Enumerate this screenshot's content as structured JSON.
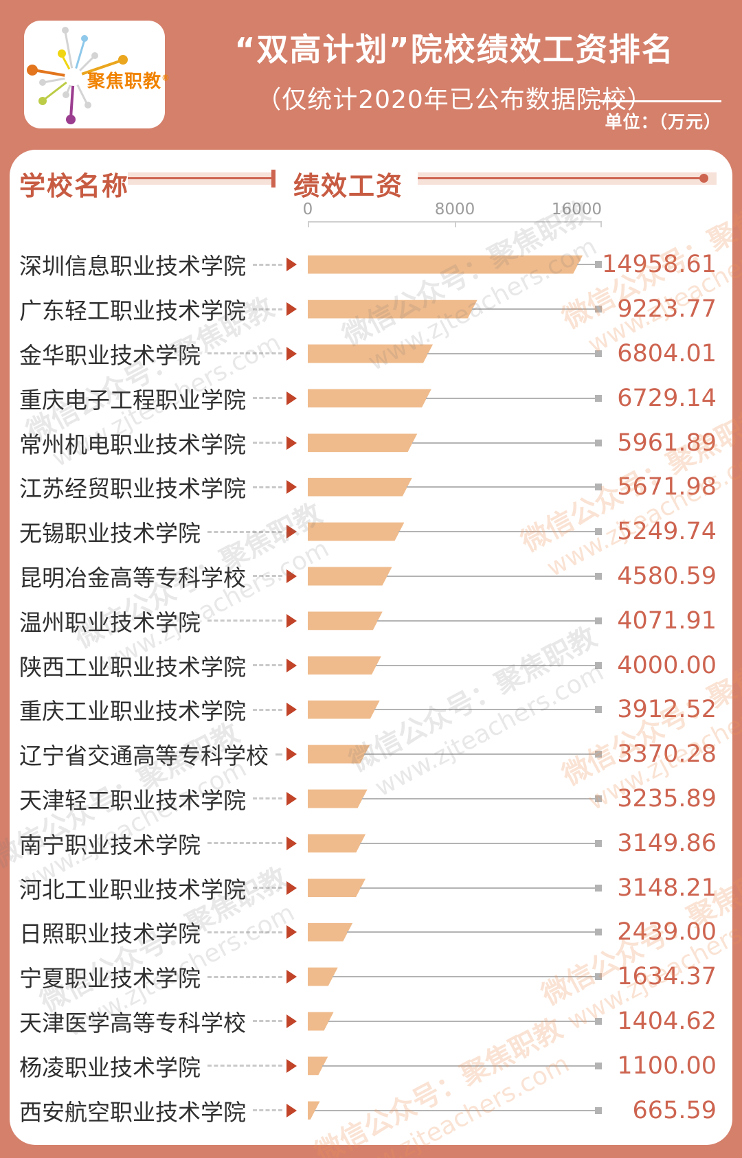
{
  "header": {
    "logo_text": "聚焦职教",
    "logo_reg_mark": "®",
    "title": "“双高计划”院校绩效工资排名",
    "subtitle": "（仅统计2020年已公布数据院校）",
    "unit_label": "单位：（万元）"
  },
  "columns": {
    "school": "学校名称",
    "salary": "绩效工资"
  },
  "chart_data": {
    "type": "bar",
    "orientation": "horizontal",
    "title": "“双高计划”院校绩效工资排名",
    "subtitle": "（仅统计2020年已公布数据院校）",
    "unit": "万元",
    "xlabel": "绩效工资",
    "ylabel": "学校名称",
    "xlim": [
      0,
      16000
    ],
    "x_ticks": [
      0,
      8000,
      16000
    ],
    "grid": false,
    "legend": false,
    "categories": [
      "深圳信息职业技术学院",
      "广东轻工职业技术学院",
      "金华职业技术学院",
      "重庆电子工程职业学院",
      "常州机电职业技术学院",
      "江苏经贸职业技术学院",
      "无锡职业技术学院",
      "昆明冶金高等专科学校",
      "温州职业技术学院",
      "陕西工业职业技术学院",
      "重庆工业职业技术学院",
      "辽宁省交通高等专科学校",
      "天津轻工职业技术学院",
      "南宁职业技术学院",
      "河北工业职业技术学院",
      "日照职业技术学院",
      "宁夏职业技术学院",
      "天津医学高等专科学校",
      "杨凌职业技术学院",
      "西安航空职业技术学院"
    ],
    "values": [
      14958.61,
      9223.77,
      6804.01,
      6729.14,
      5961.89,
      5671.98,
      5249.74,
      4580.59,
      4071.91,
      4000.0,
      3912.52,
      3370.28,
      3235.89,
      3149.86,
      3148.21,
      2439.0,
      1634.37,
      1404.62,
      1100.0,
      665.59
    ]
  },
  "watermark": {
    "line1": "微信公众号：聚焦职教",
    "line2": "www.zjteachers.com"
  },
  "colors": {
    "background": "#d5806b",
    "card": "#ffffff",
    "bar": "#efbb8c",
    "value_text": "#cd6450",
    "header_accent": "#c75b42",
    "arrow": "#c14328",
    "name_text": "#2f2f2f",
    "axis_text": "#9c9c9c",
    "connector": "#b3b3b3"
  }
}
